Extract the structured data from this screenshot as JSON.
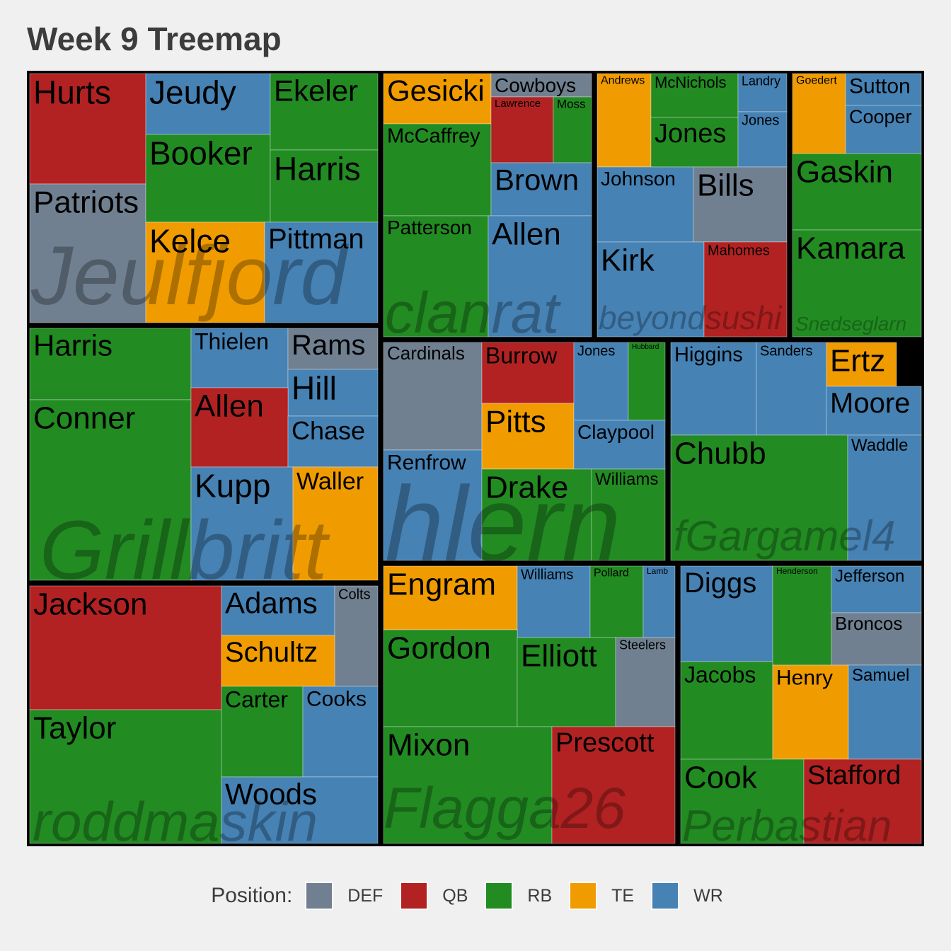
{
  "title": "Week 9 Treemap",
  "legend": {
    "title": "Position:",
    "entries": [
      {
        "label": "DEF",
        "color": "#708090"
      },
      {
        "label": "QB",
        "color": "#b22222"
      },
      {
        "label": "RB",
        "color": "#228b22"
      },
      {
        "label": "TE",
        "color": "#f09c00"
      },
      {
        "label": "WR",
        "color": "#4682b4"
      }
    ]
  },
  "chart_data": {
    "type": "treemap",
    "title": "Week 9 Treemap",
    "groups": [
      {
        "name": "Jeulfjord",
        "players": [
          {
            "name": "Hurts",
            "pos": "QB"
          },
          {
            "name": "Patriots",
            "pos": "DEF"
          },
          {
            "name": "Jeudy",
            "pos": "WR"
          },
          {
            "name": "Booker",
            "pos": "RB"
          },
          {
            "name": "Kelce",
            "pos": "TE"
          },
          {
            "name": "Ekeler",
            "pos": "RB"
          },
          {
            "name": "Harris",
            "pos": "RB"
          },
          {
            "name": "Pittman",
            "pos": "WR"
          }
        ]
      },
      {
        "name": "clanrat",
        "players": [
          {
            "name": "Gesicki",
            "pos": "TE"
          },
          {
            "name": "McCaffrey",
            "pos": "RB"
          },
          {
            "name": "Patterson",
            "pos": "RB"
          },
          {
            "name": "Cowboys",
            "pos": "DEF"
          },
          {
            "name": "Lawrence",
            "pos": "QB"
          },
          {
            "name": "Moss",
            "pos": "RB"
          },
          {
            "name": "Brown",
            "pos": "WR"
          },
          {
            "name": "Allen",
            "pos": "WR"
          }
        ]
      },
      {
        "name": "beyondsushi",
        "players": [
          {
            "name": "Andrews",
            "pos": "TE"
          },
          {
            "name": "McNichols",
            "pos": "RB"
          },
          {
            "name": "Jones",
            "pos": "RB"
          },
          {
            "name": "Landry",
            "pos": "WR"
          },
          {
            "name": "Jones",
            "pos": "WR"
          },
          {
            "name": "Johnson",
            "pos": "WR"
          },
          {
            "name": "Bills",
            "pos": "DEF"
          },
          {
            "name": "Kirk",
            "pos": "WR"
          },
          {
            "name": "Mahomes",
            "pos": "QB"
          }
        ]
      },
      {
        "name": "Snedseglarn",
        "players": [
          {
            "name": "Goedert",
            "pos": "TE"
          },
          {
            "name": "Sutton",
            "pos": "WR"
          },
          {
            "name": "Cooper",
            "pos": "WR"
          },
          {
            "name": "Gaskin",
            "pos": "RB"
          },
          {
            "name": "Kamara",
            "pos": "RB"
          }
        ]
      },
      {
        "name": "Grillbritt",
        "players": [
          {
            "name": "Harris",
            "pos": "RB"
          },
          {
            "name": "Conner",
            "pos": "RB"
          },
          {
            "name": "Thielen",
            "pos": "WR"
          },
          {
            "name": "Rams",
            "pos": "DEF"
          },
          {
            "name": "Hill",
            "pos": "WR"
          },
          {
            "name": "Allen",
            "pos": "QB"
          },
          {
            "name": "Chase",
            "pos": "WR"
          },
          {
            "name": "Kupp",
            "pos": "WR"
          },
          {
            "name": "Waller",
            "pos": "TE"
          }
        ]
      },
      {
        "name": "hlern",
        "players": [
          {
            "name": "Cardinals",
            "pos": "DEF"
          },
          {
            "name": "Renfrow",
            "pos": "WR"
          },
          {
            "name": "Burrow",
            "pos": "QB"
          },
          {
            "name": "Pitts",
            "pos": "TE"
          },
          {
            "name": "Jones",
            "pos": "WR"
          },
          {
            "name": "Hubbard",
            "pos": "RB"
          },
          {
            "name": "Claypool",
            "pos": "WR"
          },
          {
            "name": "Drake",
            "pos": "RB"
          },
          {
            "name": "Williams",
            "pos": "RB"
          }
        ]
      },
      {
        "name": "fGargamel4",
        "players": [
          {
            "name": "Higgins",
            "pos": "WR"
          },
          {
            "name": "Sanders",
            "pos": "WR"
          },
          {
            "name": "Ertz",
            "pos": "TE"
          },
          {
            "name": "Moore",
            "pos": "WR"
          },
          {
            "name": "Chubb",
            "pos": "RB"
          },
          {
            "name": "Waddle",
            "pos": "WR"
          }
        ]
      },
      {
        "name": "roddmaskin",
        "players": [
          {
            "name": "Jackson",
            "pos": "QB"
          },
          {
            "name": "Taylor",
            "pos": "RB"
          },
          {
            "name": "Adams",
            "pos": "WR"
          },
          {
            "name": "Colts",
            "pos": "DEF"
          },
          {
            "name": "Schultz",
            "pos": "TE"
          },
          {
            "name": "Carter",
            "pos": "RB"
          },
          {
            "name": "Cooks",
            "pos": "WR"
          },
          {
            "name": "Woods",
            "pos": "WR"
          }
        ]
      },
      {
        "name": "Flagga26",
        "players": [
          {
            "name": "Engram",
            "pos": "TE"
          },
          {
            "name": "Williams",
            "pos": "WR"
          },
          {
            "name": "Pollard",
            "pos": "RB"
          },
          {
            "name": "Lamb",
            "pos": "WR"
          },
          {
            "name": "Gordon",
            "pos": "RB"
          },
          {
            "name": "Elliott",
            "pos": "RB"
          },
          {
            "name": "Steelers",
            "pos": "DEF"
          },
          {
            "name": "Mixon",
            "pos": "RB"
          },
          {
            "name": "Prescott",
            "pos": "QB"
          }
        ]
      },
      {
        "name": "Perbastian",
        "players": [
          {
            "name": "Diggs",
            "pos": "WR"
          },
          {
            "name": "Henderson",
            "pos": "RB"
          },
          {
            "name": "Jefferson",
            "pos": "WR"
          },
          {
            "name": "Broncos",
            "pos": "DEF"
          },
          {
            "name": "Jacobs",
            "pos": "RB"
          },
          {
            "name": "Henry",
            "pos": "TE"
          },
          {
            "name": "Samuel",
            "pos": "WR"
          },
          {
            "name": "Cook",
            "pos": "RB"
          },
          {
            "name": "Stafford",
            "pos": "QB"
          }
        ]
      }
    ]
  }
}
